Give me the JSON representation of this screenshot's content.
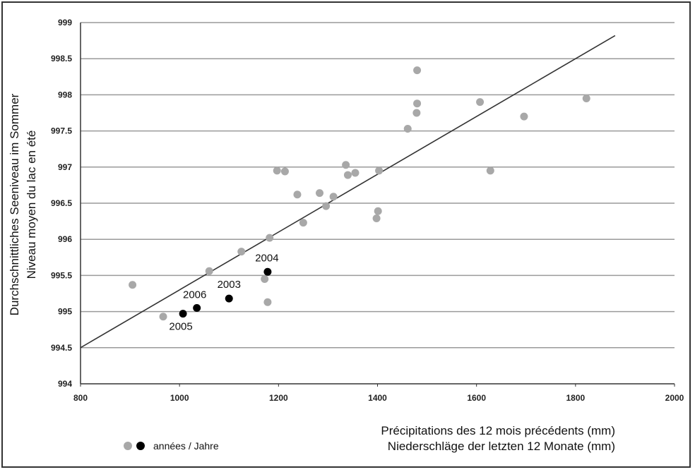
{
  "chart_data": {
    "type": "scatter",
    "ylabel_1": "Durchschnittliches Seeniveau im Sommer",
    "ylabel_2": "Niveau moyen du lac en été",
    "xlabel_1": "Précipitations des 12 mois précédents (mm)",
    "xlabel_2": "Niederschläge der letzten 12 Monate (mm)",
    "xlim": [
      800,
      2000
    ],
    "ylim": [
      994,
      999
    ],
    "x_ticks": [
      "800",
      "1000",
      "1200",
      "1400",
      "1600",
      "1800",
      "2000"
    ],
    "y_ticks": [
      "994",
      "994.5",
      "995",
      "995.5",
      "996",
      "996.5",
      "997",
      "997.5",
      "998",
      "998.5",
      "999"
    ],
    "grid": "horizontal",
    "legend_label": "années / Jahre",
    "colors": {
      "other_years": "#a8a8a8",
      "highlight_years": "#000000",
      "trend": "#333333",
      "grid": "#9a9a9a"
    },
    "trend_line": {
      "x": [
        800,
        1880
      ],
      "y": [
        994.5,
        998.82
      ]
    },
    "series": [
      {
        "color_key": "other_years",
        "points": [
          [
            905,
            995.37
          ],
          [
            967,
            994.93
          ],
          [
            1060,
            995.56
          ],
          [
            1125,
            995.83
          ],
          [
            1172,
            995.45
          ],
          [
            1178,
            995.13
          ],
          [
            1182,
            996.02
          ],
          [
            1197,
            996.95
          ],
          [
            1213,
            996.94
          ],
          [
            1238,
            996.62
          ],
          [
            1250,
            996.23
          ],
          [
            1283,
            996.64
          ],
          [
            1296,
            996.46
          ],
          [
            1311,
            996.59
          ],
          [
            1336,
            997.03
          ],
          [
            1340,
            996.89
          ],
          [
            1355,
            996.92
          ],
          [
            1398,
            996.29
          ],
          [
            1401,
            996.39
          ],
          [
            1403,
            996.95
          ],
          [
            1461,
            997.53
          ],
          [
            1480,
            998.34
          ],
          [
            1480,
            997.88
          ],
          [
            1479,
            997.75
          ],
          [
            1607,
            997.9
          ],
          [
            1628,
            996.95
          ],
          [
            1696,
            997.7
          ],
          [
            1822,
            997.95
          ]
        ]
      },
      {
        "color_key": "highlight_years",
        "points": [
          {
            "x": 1007,
            "y": 994.97,
            "label": "2005"
          },
          {
            "x": 1035,
            "y": 995.05,
            "label": "2006"
          },
          {
            "x": 1100,
            "y": 995.18,
            "label": "2003"
          },
          {
            "x": 1178,
            "y": 995.55,
            "label": "2004"
          }
        ]
      }
    ]
  }
}
